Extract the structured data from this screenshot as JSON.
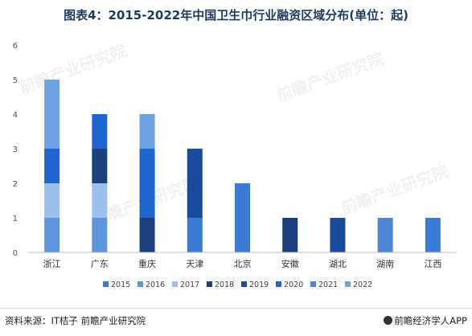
{
  "title": "图表4：2015-2022年中国卫生巾行业融资区域分布(单位：起)",
  "footer": {
    "source": "资料来源：IT桔子 前瞻产业研究院",
    "brand": "前瞻经济学人APP",
    "brand_icon": "qianzhan-logo-icon"
  },
  "watermark": "前瞻产业研究院",
  "chart_data": {
    "type": "bar",
    "stacked": true,
    "title": "图表4：2015-2022年中国卫生巾行业融资区域分布(单位：起)",
    "xlabel": "",
    "ylabel": "",
    "ylim": [
      0,
      6
    ],
    "yticks": [
      0,
      1,
      2,
      3,
      4,
      5,
      6
    ],
    "grid": false,
    "legend_position": "bottom",
    "categories": [
      "浙江",
      "广东",
      "重庆",
      "天津",
      "北京",
      "安徽",
      "湖北",
      "湖南",
      "江西"
    ],
    "series": [
      {
        "name": "2015",
        "color": "#3a7bd5",
        "values": [
          0,
          0,
          0,
          1,
          2,
          0,
          0,
          0,
          1
        ]
      },
      {
        "name": "2016",
        "color": "#5b95dc",
        "values": [
          1,
          1,
          0,
          0,
          0,
          0,
          0,
          0,
          0
        ]
      },
      {
        "name": "2017",
        "color": "#9dbfec",
        "values": [
          1,
          1,
          0,
          0,
          0,
          0,
          0,
          0,
          0
        ]
      },
      {
        "name": "2018",
        "color": "#1b3f7f",
        "values": [
          0,
          1,
          1,
          0,
          0,
          1,
          0,
          0,
          0
        ]
      },
      {
        "name": "2019",
        "color": "#194b9c",
        "values": [
          0,
          0,
          0,
          2,
          0,
          0,
          1,
          0,
          0
        ]
      },
      {
        "name": "2020",
        "color": "#1f65cf",
        "values": [
          1,
          1,
          2,
          0,
          0,
          0,
          0,
          0,
          0
        ]
      },
      {
        "name": "2021",
        "color": "#4d86d6",
        "values": [
          0,
          0,
          0,
          0,
          0,
          0,
          0,
          1,
          0
        ]
      },
      {
        "name": "2022",
        "color": "#6ea3e3",
        "values": [
          2,
          0,
          1,
          0,
          0,
          0,
          0,
          0,
          0
        ]
      }
    ]
  }
}
